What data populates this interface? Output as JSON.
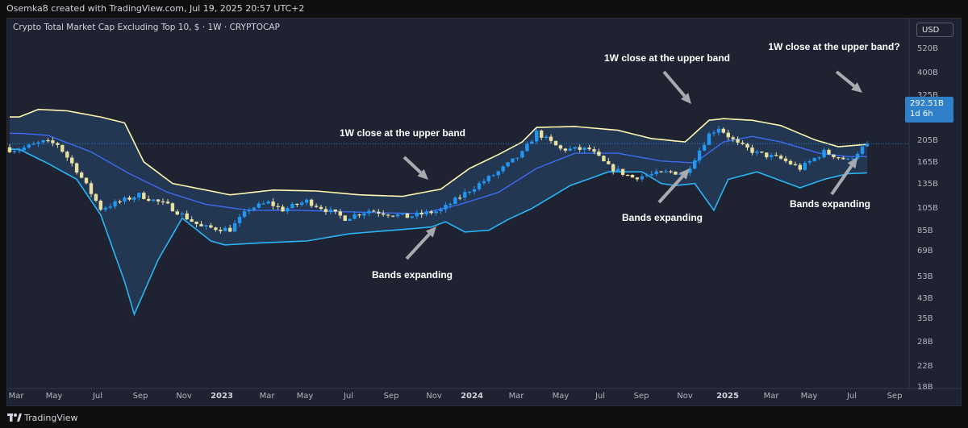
{
  "header": {
    "credit": "Osemka8 created with TradingView.com, Jul 19, 2025 20:57 UTC+2"
  },
  "pane": {
    "title": "Crypto Total Market Cap Excluding Top 10, $ · 1W · CRYPTOCAP",
    "currency": "USD",
    "last_price": "292.51B",
    "countdown": "1d 6h"
  },
  "footer": {
    "brand": "TradingView"
  },
  "colors": {
    "background": "#1f2230",
    "up_candle": "#2196f3",
    "down_candle": "#e8dfa0",
    "upper_band": "#fff7b0",
    "basis": "#3d6cf0",
    "lower_band": "#29b6f6",
    "band_fill": "#253a58",
    "price_tag": "#2f80c8"
  },
  "chart_data": {
    "type": "candlestick",
    "title": "Crypto Total Market Cap Excluding Top 10, $ · 1W · CRYPTOCAP",
    "indicator": "Bollinger Bands",
    "y_scale": "log",
    "y_unit": "USD (B)",
    "y_ticks": [
      "520B",
      "400B",
      "325B",
      "265B",
      "205B",
      "165B",
      "135B",
      "105B",
      "85B",
      "69B",
      "53B",
      "43B",
      "35B",
      "28B",
      "22B",
      "18B"
    ],
    "x_ticks": [
      {
        "label": "Mar",
        "bold": false
      },
      {
        "label": "May",
        "bold": false
      },
      {
        "label": "Jul",
        "bold": false
      },
      {
        "label": "Sep",
        "bold": false
      },
      {
        "label": "Nov",
        "bold": false
      },
      {
        "label": "2023",
        "bold": true
      },
      {
        "label": "Mar",
        "bold": false
      },
      {
        "label": "May",
        "bold": false
      },
      {
        "label": "Jul",
        "bold": false
      },
      {
        "label": "Sep",
        "bold": false
      },
      {
        "label": "Nov",
        "bold": false
      },
      {
        "label": "2024",
        "bold": true
      },
      {
        "label": "Mar",
        "bold": false
      },
      {
        "label": "May",
        "bold": false
      },
      {
        "label": "Jul",
        "bold": false
      },
      {
        "label": "Sep",
        "bold": false
      },
      {
        "label": "Nov",
        "bold": false
      },
      {
        "label": "2025",
        "bold": true
      },
      {
        "label": "Mar",
        "bold": false
      },
      {
        "label": "May",
        "bold": false
      },
      {
        "label": "Jul",
        "bold": false
      },
      {
        "label": "Sep",
        "bold": false
      }
    ],
    "last_close": 292.51,
    "close_anchors": [
      [
        "2022-02-21",
        270
      ],
      [
        "2022-03-28",
        300
      ],
      [
        "2022-04-18",
        290
      ],
      [
        "2022-05-16",
        200
      ],
      [
        "2022-06-20",
        115
      ],
      [
        "2022-08-15",
        140
      ],
      [
        "2022-09-26",
        120
      ],
      [
        "2022-11-14",
        88
      ],
      [
        "2022-12-26",
        85
      ],
      [
        "2023-01-23",
        115
      ],
      [
        "2023-02-20",
        125
      ],
      [
        "2023-03-13",
        113
      ],
      [
        "2023-04-17",
        128
      ],
      [
        "2023-06-12",
        100
      ],
      [
        "2023-07-17",
        112
      ],
      [
        "2023-09-11",
        102
      ],
      [
        "2023-10-30",
        112
      ],
      [
        "2023-12-11",
        150
      ],
      [
        "2024-01-22",
        195
      ],
      [
        "2024-02-26",
        255
      ],
      [
        "2024-03-18",
        345
      ],
      [
        "2024-04-22",
        270
      ],
      [
        "2024-06-03",
        270
      ],
      [
        "2024-07-01",
        210
      ],
      [
        "2024-08-05",
        180
      ],
      [
        "2024-09-30",
        195
      ],
      [
        "2024-10-21",
        190
      ],
      [
        "2024-11-25",
        335
      ],
      [
        "2024-12-09",
        370
      ],
      [
        "2025-01-06",
        290
      ],
      [
        "2025-02-03",
        255
      ],
      [
        "2025-03-10",
        235
      ],
      [
        "2025-04-07",
        205
      ],
      [
        "2025-05-12",
        260
      ],
      [
        "2025-06-16",
        230
      ],
      [
        "2025-07-14",
        292.51
      ]
    ],
    "upper_band_anchors": [
      [
        "2022-02-21",
        430
      ],
      [
        "2022-03-21",
        480
      ],
      [
        "2022-05-02",
        470
      ],
      [
        "2022-06-20",
        430
      ],
      [
        "2022-07-25",
        395
      ],
      [
        "2022-08-22",
        225
      ],
      [
        "2022-10-03",
        165
      ],
      [
        "2022-12-26",
        140
      ],
      [
        "2023-02-27",
        150
      ],
      [
        "2023-05-01",
        148
      ],
      [
        "2023-07-03",
        140
      ],
      [
        "2023-09-04",
        137
      ],
      [
        "2023-10-30",
        152
      ],
      [
        "2023-12-11",
        205
      ],
      [
        "2024-01-22",
        250
      ],
      [
        "2024-02-26",
        300
      ],
      [
        "2024-03-18",
        370
      ],
      [
        "2024-05-13",
        375
      ],
      [
        "2024-07-15",
        355
      ],
      [
        "2024-09-02",
        315
      ],
      [
        "2024-10-21",
        300
      ],
      [
        "2024-11-25",
        410
      ],
      [
        "2024-12-16",
        420
      ],
      [
        "2025-01-27",
        410
      ],
      [
        "2025-03-10",
        380
      ],
      [
        "2025-04-28",
        310
      ],
      [
        "2025-06-02",
        280
      ],
      [
        "2025-07-14",
        290
      ]
    ],
    "basis_anchors": [
      [
        "2022-02-21",
        340
      ],
      [
        "2022-04-04",
        330
      ],
      [
        "2022-06-06",
        260
      ],
      [
        "2022-08-01",
        190
      ],
      [
        "2022-09-26",
        145
      ],
      [
        "2022-11-21",
        122
      ],
      [
        "2023-01-23",
        112
      ],
      [
        "2023-04-03",
        112
      ],
      [
        "2023-06-05",
        110
      ],
      [
        "2023-08-07",
        108
      ],
      [
        "2023-10-02",
        107
      ],
      [
        "2023-11-27",
        122
      ],
      [
        "2024-01-22",
        145
      ],
      [
        "2024-03-18",
        205
      ],
      [
        "2024-05-13",
        255
      ],
      [
        "2024-07-15",
        255
      ],
      [
        "2024-09-16",
        228
      ],
      [
        "2024-11-04",
        222
      ],
      [
        "2024-12-16",
        300
      ],
      [
        "2025-01-27",
        325
      ],
      [
        "2025-03-10",
        300
      ],
      [
        "2025-05-05",
        255
      ],
      [
        "2025-06-16",
        243
      ],
      [
        "2025-07-14",
        243
      ]
    ],
    "lower_band_anchors": [
      [
        "2022-02-21",
        270
      ],
      [
        "2022-04-04",
        220
      ],
      [
        "2022-05-16",
        175
      ],
      [
        "2022-06-20",
        105
      ],
      [
        "2022-07-25",
        40
      ],
      [
        "2022-08-08",
        25
      ],
      [
        "2022-09-12",
        55
      ],
      [
        "2022-10-17",
        100
      ],
      [
        "2022-11-28",
        72
      ],
      [
        "2022-12-19",
        68
      ],
      [
        "2023-02-06",
        70
      ],
      [
        "2023-04-17",
        72
      ],
      [
        "2023-06-19",
        80
      ],
      [
        "2023-08-21",
        84
      ],
      [
        "2023-10-16",
        88
      ],
      [
        "2023-11-06",
        95
      ],
      [
        "2023-12-04",
        82
      ],
      [
        "2024-01-08",
        84
      ],
      [
        "2024-02-05",
        98
      ],
      [
        "2024-03-11",
        115
      ],
      [
        "2024-05-06",
        160
      ],
      [
        "2024-07-01",
        195
      ],
      [
        "2024-08-19",
        195
      ],
      [
        "2024-09-16",
        165
      ],
      [
        "2024-10-07",
        160
      ],
      [
        "2024-11-04",
        165
      ],
      [
        "2024-12-02",
        112
      ],
      [
        "2024-12-23",
        175
      ],
      [
        "2025-02-03",
        195
      ],
      [
        "2025-04-07",
        155
      ],
      [
        "2025-05-12",
        175
      ],
      [
        "2025-06-16",
        190
      ],
      [
        "2025-07-14",
        192
      ]
    ],
    "annotations": [
      {
        "text": "1W close at the upper band",
        "type": "label"
      },
      {
        "text": "Bands expanding",
        "type": "label"
      },
      {
        "text": "1W close at the upper band",
        "type": "label"
      },
      {
        "text": "Bands expanding",
        "type": "label"
      },
      {
        "text": "1W close at the upper band?",
        "type": "label"
      },
      {
        "text": "Bands expanding",
        "type": "label"
      }
    ]
  }
}
